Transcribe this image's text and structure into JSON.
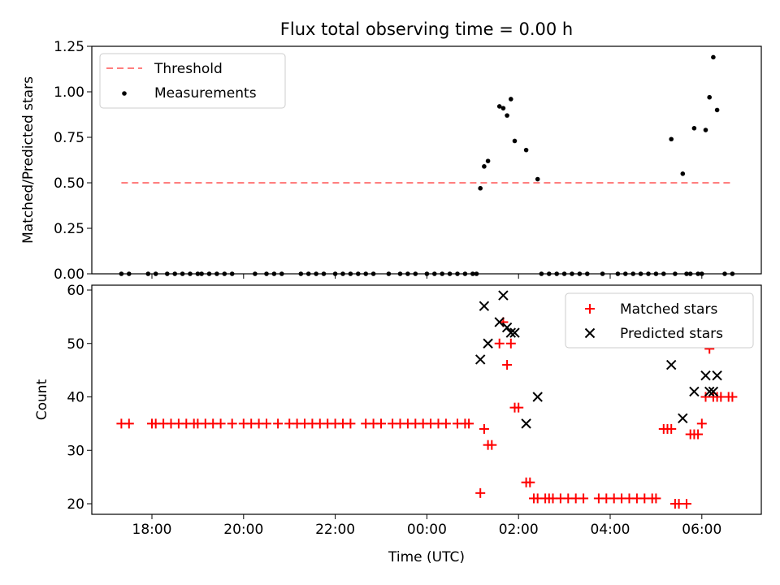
{
  "title": "Flux total observing time = 0.00 h",
  "chart_data": [
    {
      "type": "scatter",
      "ylabel": "Matched/Predicted stars",
      "ylim": [
        0,
        1.25
      ],
      "yticks": [
        "0.00",
        "0.25",
        "0.50",
        "0.75",
        "1.00",
        "1.25"
      ],
      "legend": {
        "placement": "upper-left",
        "entries": [
          "Threshold",
          "Measurements"
        ]
      },
      "threshold": {
        "name": "Threshold",
        "value": 0.5,
        "color": "#ff7f7f",
        "x_range": [
          "17:20",
          "06:40"
        ]
      },
      "series": [
        {
          "name": "Measurements",
          "color": "#000000",
          "points": [
            [
              "17:20",
              0
            ],
            [
              "17:30",
              0
            ],
            [
              "17:55",
              0
            ],
            [
              "18:05",
              0
            ],
            [
              "18:20",
              0
            ],
            [
              "18:30",
              0
            ],
            [
              "18:40",
              0
            ],
            [
              "18:50",
              0
            ],
            [
              "19:00",
              0
            ],
            [
              "19:05",
              0
            ],
            [
              "19:15",
              0
            ],
            [
              "19:25",
              0
            ],
            [
              "19:35",
              0
            ],
            [
              "19:45",
              0
            ],
            [
              "20:15",
              0
            ],
            [
              "20:30",
              0
            ],
            [
              "20:40",
              0
            ],
            [
              "20:50",
              0
            ],
            [
              "21:15",
              0
            ],
            [
              "21:25",
              0
            ],
            [
              "21:35",
              0
            ],
            [
              "21:45",
              0
            ],
            [
              "22:00",
              0
            ],
            [
              "22:10",
              0
            ],
            [
              "22:20",
              0
            ],
            [
              "22:30",
              0
            ],
            [
              "22:40",
              0
            ],
            [
              "22:50",
              0
            ],
            [
              "23:10",
              0
            ],
            [
              "23:25",
              0
            ],
            [
              "23:35",
              0
            ],
            [
              "23:45",
              0
            ],
            [
              "00:00",
              0
            ],
            [
              "00:10",
              0
            ],
            [
              "00:20",
              0
            ],
            [
              "00:30",
              0
            ],
            [
              "00:40",
              0
            ],
            [
              "00:50",
              0
            ],
            [
              "01:00",
              0
            ],
            [
              "01:05",
              0
            ],
            [
              "01:10",
              0.47
            ],
            [
              "01:15",
              0.59
            ],
            [
              "01:20",
              0.62
            ],
            [
              "01:35",
              0.92
            ],
            [
              "01:40",
              0.91
            ],
            [
              "01:45",
              0.87
            ],
            [
              "01:50",
              0.96
            ],
            [
              "01:55",
              0.73
            ],
            [
              "02:10",
              0.68
            ],
            [
              "02:25",
              0.52
            ],
            [
              "02:30",
              0
            ],
            [
              "02:40",
              0
            ],
            [
              "02:50",
              0
            ],
            [
              "03:00",
              0
            ],
            [
              "03:10",
              0
            ],
            [
              "03:20",
              0
            ],
            [
              "03:30",
              0
            ],
            [
              "03:50",
              0
            ],
            [
              "04:10",
              0
            ],
            [
              "04:20",
              0
            ],
            [
              "04:30",
              0
            ],
            [
              "04:40",
              0
            ],
            [
              "04:50",
              0
            ],
            [
              "05:00",
              0
            ],
            [
              "05:10",
              0
            ],
            [
              "05:20",
              0.74
            ],
            [
              "05:25",
              0
            ],
            [
              "05:35",
              0.55
            ],
            [
              "05:40",
              0
            ],
            [
              "05:45",
              0
            ],
            [
              "05:50",
              0.8
            ],
            [
              "05:55",
              0
            ],
            [
              "06:00",
              0
            ],
            [
              "06:05",
              0.79
            ],
            [
              "06:10",
              0.97
            ],
            [
              "06:15",
              1.19
            ],
            [
              "06:20",
              0.9
            ],
            [
              "06:30",
              0
            ],
            [
              "06:40",
              0
            ]
          ]
        }
      ]
    },
    {
      "type": "scatter",
      "xlabel": "Time (UTC)",
      "ylabel": "Count",
      "ylim": [
        18,
        61
      ],
      "yticks": [
        "20",
        "30",
        "40",
        "50",
        "60"
      ],
      "xticks": [
        "18:00",
        "20:00",
        "22:00",
        "00:00",
        "02:00",
        "04:00",
        "06:00"
      ],
      "legend": {
        "placement": "upper-right",
        "entries": [
          "Matched stars",
          "Predicted stars"
        ]
      },
      "series": [
        {
          "name": "Matched stars",
          "marker": "+",
          "color": "#ff0000",
          "points": [
            [
              "17:20",
              35
            ],
            [
              "17:30",
              35
            ],
            [
              "18:00",
              35
            ],
            [
              "18:05",
              35
            ],
            [
              "18:15",
              35
            ],
            [
              "18:25",
              35
            ],
            [
              "18:35",
              35
            ],
            [
              "18:45",
              35
            ],
            [
              "18:55",
              35
            ],
            [
              "19:00",
              35
            ],
            [
              "19:10",
              35
            ],
            [
              "19:20",
              35
            ],
            [
              "19:30",
              35
            ],
            [
              "19:45",
              35
            ],
            [
              "20:00",
              35
            ],
            [
              "20:10",
              35
            ],
            [
              "20:20",
              35
            ],
            [
              "20:30",
              35
            ],
            [
              "20:45",
              35
            ],
            [
              "21:00",
              35
            ],
            [
              "21:10",
              35
            ],
            [
              "21:20",
              35
            ],
            [
              "21:30",
              35
            ],
            [
              "21:40",
              35
            ],
            [
              "21:50",
              35
            ],
            [
              "22:00",
              35
            ],
            [
              "22:10",
              35
            ],
            [
              "22:20",
              35
            ],
            [
              "22:40",
              35
            ],
            [
              "22:50",
              35
            ],
            [
              "23:00",
              35
            ],
            [
              "23:15",
              35
            ],
            [
              "23:25",
              35
            ],
            [
              "23:35",
              35
            ],
            [
              "23:45",
              35
            ],
            [
              "23:55",
              35
            ],
            [
              "00:05",
              35
            ],
            [
              "00:15",
              35
            ],
            [
              "00:25",
              35
            ],
            [
              "00:40",
              35
            ],
            [
              "00:50",
              35
            ],
            [
              "00:55",
              35
            ],
            [
              "01:10",
              22
            ],
            [
              "01:15",
              34
            ],
            [
              "01:20",
              31
            ],
            [
              "01:25",
              31
            ],
            [
              "01:35",
              50
            ],
            [
              "01:40",
              54
            ],
            [
              "01:45",
              46
            ],
            [
              "01:50",
              50
            ],
            [
              "01:55",
              38
            ],
            [
              "02:00",
              38
            ],
            [
              "02:10",
              24
            ],
            [
              "02:15",
              24
            ],
            [
              "02:20",
              21
            ],
            [
              "02:25",
              21
            ],
            [
              "02:35",
              21
            ],
            [
              "02:40",
              21
            ],
            [
              "02:45",
              21
            ],
            [
              "02:55",
              21
            ],
            [
              "03:05",
              21
            ],
            [
              "03:15",
              21
            ],
            [
              "03:25",
              21
            ],
            [
              "03:45",
              21
            ],
            [
              "03:55",
              21
            ],
            [
              "04:05",
              21
            ],
            [
              "04:15",
              21
            ],
            [
              "04:25",
              21
            ],
            [
              "04:35",
              21
            ],
            [
              "04:45",
              21
            ],
            [
              "04:55",
              21
            ],
            [
              "05:00",
              21
            ],
            [
              "05:10",
              34
            ],
            [
              "05:15",
              34
            ],
            [
              "05:20",
              34
            ],
            [
              "05:25",
              20
            ],
            [
              "05:30",
              20
            ],
            [
              "05:40",
              20
            ],
            [
              "05:45",
              33
            ],
            [
              "05:50",
              33
            ],
            [
              "05:55",
              33
            ],
            [
              "06:00",
              35
            ],
            [
              "06:05",
              40
            ],
            [
              "06:10",
              49
            ],
            [
              "06:15",
              40
            ],
            [
              "06:20",
              40
            ],
            [
              "06:25",
              40
            ],
            [
              "06:35",
              40
            ],
            [
              "06:40",
              40
            ]
          ]
        },
        {
          "name": "Predicted stars",
          "marker": "x",
          "color": "#000000",
          "points": [
            [
              "01:10",
              47
            ],
            [
              "01:15",
              57
            ],
            [
              "01:20",
              50
            ],
            [
              "01:35",
              54
            ],
            [
              "01:40",
              59
            ],
            [
              "01:45",
              53
            ],
            [
              "01:50",
              52
            ],
            [
              "01:55",
              52
            ],
            [
              "02:10",
              35
            ],
            [
              "02:25",
              40
            ],
            [
              "05:20",
              46
            ],
            [
              "05:35",
              36
            ],
            [
              "05:50",
              41
            ],
            [
              "06:05",
              44
            ],
            [
              "06:10",
              41
            ],
            [
              "06:15",
              41
            ],
            [
              "06:20",
              44
            ]
          ]
        }
      ]
    }
  ]
}
